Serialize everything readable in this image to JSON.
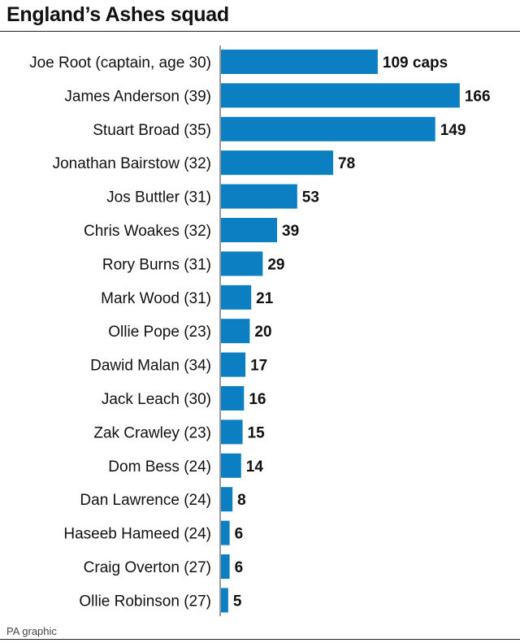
{
  "title": "England’s Ashes squad",
  "source": "PA graphic",
  "chart_data": {
    "type": "bar",
    "orientation": "horizontal",
    "title": "England’s Ashes squad",
    "xlabel": "",
    "ylabel": "",
    "grid": false,
    "bar_color": "#0b7fc1",
    "categories": [
      "Joe Root (captain, age 30)",
      "James Anderson (39)",
      "Stuart Broad (35)",
      "Jonathan Bairstow (32)",
      "Jos Buttler (31)",
      "Chris Woakes (32)",
      "Rory Burns (31)",
      "Mark Wood (31)",
      "Ollie Pope (23)",
      "Dawid Malan (34)",
      "Jack Leach (30)",
      "Zak Crawley (23)",
      "Dom Bess (24)",
      "Dan Lawrence (24)",
      "Haseeb Hameed (24)",
      "Craig Overton (27)",
      "Ollie Robinson (27)"
    ],
    "values": [
      109,
      166,
      149,
      78,
      53,
      39,
      29,
      21,
      20,
      17,
      16,
      15,
      14,
      8,
      6,
      6,
      5
    ],
    "value_labels": [
      "109 caps",
      "166",
      "149",
      "78",
      "53",
      "39",
      "29",
      "21",
      "20",
      "17",
      "16",
      "15",
      "14",
      "8",
      "6",
      "6",
      "5"
    ]
  }
}
